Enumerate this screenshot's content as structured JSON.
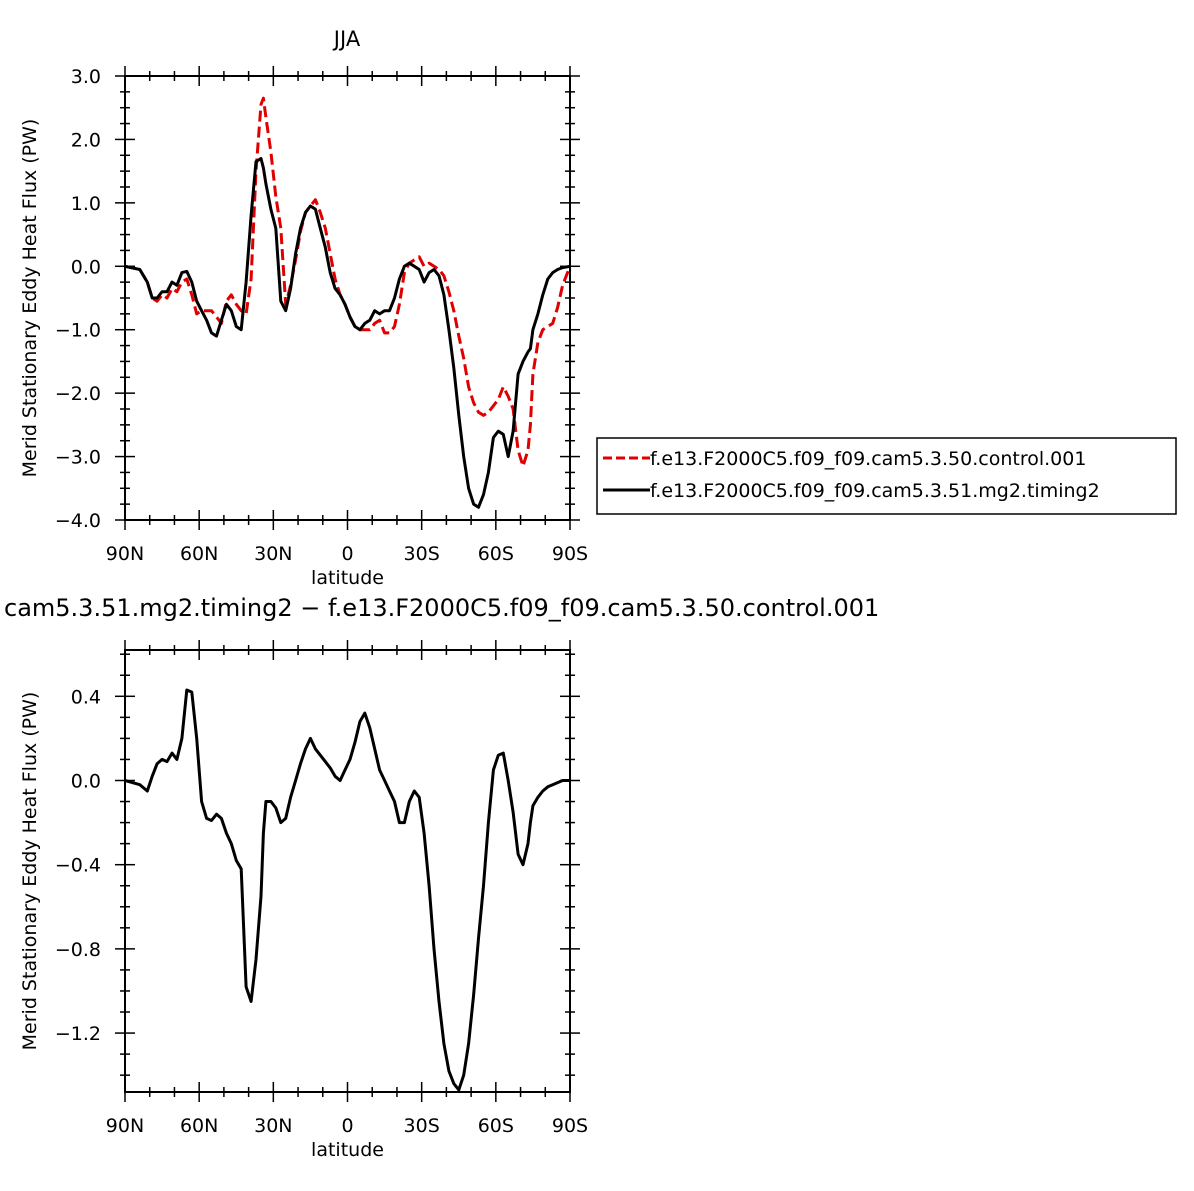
{
  "chart_data": [
    {
      "type": "line",
      "title": "JJA",
      "xlabel": "latitude",
      "ylabel": "Merid Stationary Eddy Heat Flux (PW)",
      "xlim": [
        90,
        -90
      ],
      "ylim": [
        -4.0,
        3.0
      ],
      "xticks": [
        {
          "v": 90,
          "label": "90N"
        },
        {
          "v": 60,
          "label": "60N"
        },
        {
          "v": 30,
          "label": "30N"
        },
        {
          "v": 0,
          "label": "0"
        },
        {
          "v": -30,
          "label": "30S"
        },
        {
          "v": -60,
          "label": "60S"
        },
        {
          "v": -90,
          "label": "90S"
        }
      ],
      "yticks": [
        {
          "v": 3.0,
          "label": "3.0"
        },
        {
          "v": 2.0,
          "label": "2.0"
        },
        {
          "v": 1.0,
          "label": "1.0"
        },
        {
          "v": 0.0,
          "label": "0.0"
        },
        {
          "v": -1.0,
          "label": "−1.0"
        },
        {
          "v": -2.0,
          "label": "−2.0"
        },
        {
          "v": -3.0,
          "label": "−3.0"
        },
        {
          "v": -4.0,
          "label": "−4.0"
        }
      ],
      "legend": "right",
      "series": [
        {
          "name": "f.e13.F2000C5.f09_f09.cam5.3.50.control.001",
          "color": "#e00000",
          "dash": "dashed",
          "x": [
            90,
            84,
            81,
            79,
            77,
            75,
            73,
            71,
            69,
            67,
            65,
            63,
            61,
            59,
            57,
            55,
            53,
            51,
            49,
            47,
            45,
            43,
            41,
            39,
            37,
            35,
            34,
            33,
            31,
            29,
            27,
            25,
            23,
            21,
            19,
            17,
            15,
            13,
            11,
            9,
            7,
            5,
            3,
            1,
            -1,
            -3,
            -5,
            -7,
            -9,
            -11,
            -13,
            -15,
            -17,
            -19,
            -21,
            -23,
            -25,
            -27,
            -29,
            -31,
            -33,
            -35,
            -37,
            -39,
            -41,
            -43,
            -45,
            -47,
            -49,
            -51,
            -53,
            -55,
            -57,
            -59,
            -61,
            -63,
            -65,
            -67,
            -69,
            -71,
            -73,
            -74,
            -75,
            -77,
            -79,
            -81,
            -83,
            -85,
            -87,
            -90
          ],
          "y": [
            0.0,
            -0.05,
            -0.25,
            -0.5,
            -0.55,
            -0.45,
            -0.5,
            -0.35,
            -0.4,
            -0.25,
            -0.2,
            -0.45,
            -0.75,
            -0.7,
            -0.7,
            -0.7,
            -0.8,
            -0.9,
            -0.55,
            -0.45,
            -0.6,
            -0.7,
            -0.75,
            -0.2,
            1.5,
            2.55,
            2.65,
            2.35,
            1.8,
            1.1,
            0.6,
            -0.6,
            -0.3,
            0.1,
            0.55,
            0.85,
            0.95,
            1.05,
            0.85,
            0.6,
            0.2,
            -0.2,
            -0.45,
            -0.6,
            -0.8,
            -0.95,
            -1.0,
            -1.0,
            -1.0,
            -0.9,
            -0.85,
            -1.05,
            -1.05,
            -0.95,
            -0.6,
            -0.1,
            0.05,
            0.1,
            0.15,
            0.0,
            0.05,
            0.0,
            -0.05,
            -0.15,
            -0.4,
            -0.7,
            -1.1,
            -1.45,
            -1.9,
            -2.15,
            -2.3,
            -2.35,
            -2.3,
            -2.2,
            -2.1,
            -1.9,
            -2.05,
            -2.25,
            -2.9,
            -3.15,
            -2.9,
            -2.5,
            -1.7,
            -1.2,
            -1.0,
            -0.95,
            -0.9,
            -0.65,
            -0.3,
            0.0
          ]
        },
        {
          "name": "f.e13.F2000C5.f09_f09.cam5.3.51.mg2.timing2",
          "color": "#000000",
          "dash": "solid",
          "x": [
            90,
            84,
            81,
            79,
            77,
            75,
            73,
            71,
            69,
            67,
            65,
            63,
            61,
            59,
            57,
            55,
            53,
            51,
            49,
            47,
            45,
            43,
            41,
            39,
            37,
            35,
            34,
            33,
            31,
            29,
            27,
            25,
            23,
            21,
            19,
            17,
            15,
            13,
            11,
            9,
            7,
            5,
            3,
            1,
            -1,
            -3,
            -5,
            -7,
            -9,
            -11,
            -13,
            -15,
            -17,
            -19,
            -21,
            -23,
            -25,
            -27,
            -29,
            -31,
            -33,
            -35,
            -37,
            -39,
            -41,
            -43,
            -45,
            -47,
            -49,
            -51,
            -53,
            -55,
            -57,
            -59,
            -61,
            -63,
            -65,
            -67,
            -69,
            -71,
            -73,
            -74,
            -75,
            -77,
            -79,
            -81,
            -83,
            -85,
            -87,
            -90
          ],
          "y": [
            0.0,
            -0.05,
            -0.25,
            -0.5,
            -0.5,
            -0.4,
            -0.4,
            -0.25,
            -0.3,
            -0.1,
            -0.08,
            -0.25,
            -0.55,
            -0.7,
            -0.85,
            -1.05,
            -1.1,
            -0.85,
            -0.6,
            -0.7,
            -0.95,
            -1.0,
            -0.25,
            0.8,
            1.65,
            1.7,
            1.55,
            1.3,
            0.9,
            0.6,
            -0.55,
            -0.7,
            -0.35,
            0.2,
            0.6,
            0.85,
            0.95,
            0.9,
            0.6,
            0.3,
            -0.1,
            -0.35,
            -0.45,
            -0.6,
            -0.8,
            -0.95,
            -1.0,
            -0.9,
            -0.85,
            -0.7,
            -0.75,
            -0.7,
            -0.7,
            -0.5,
            -0.2,
            0.0,
            0.05,
            0.0,
            -0.05,
            -0.25,
            -0.1,
            -0.05,
            -0.15,
            -0.45,
            -1.0,
            -1.6,
            -2.35,
            -3.0,
            -3.5,
            -3.75,
            -3.8,
            -3.6,
            -3.25,
            -2.7,
            -2.6,
            -2.65,
            -3.0,
            -2.6,
            -1.7,
            -1.5,
            -1.35,
            -1.3,
            -1.0,
            -0.75,
            -0.45,
            -0.2,
            -0.1,
            -0.05,
            -0.02,
            0.0
          ]
        }
      ]
    },
    {
      "type": "line",
      "title": "cam5.3.51.mg2.timing2 − f.e13.F2000C5.f09_f09.cam5.3.50.control.001",
      "xlabel": "latitude",
      "ylabel": "Merid Stationary Eddy Heat Flux (PW)",
      "xlim": [
        90,
        -90
      ],
      "ylim": [
        -1.48,
        0.62
      ],
      "xticks": [
        {
          "v": 90,
          "label": "90N"
        },
        {
          "v": 60,
          "label": "60N"
        },
        {
          "v": 30,
          "label": "30N"
        },
        {
          "v": 0,
          "label": "0"
        },
        {
          "v": -30,
          "label": "30S"
        },
        {
          "v": -60,
          "label": "60S"
        },
        {
          "v": -90,
          "label": "90S"
        }
      ],
      "yticks": [
        {
          "v": 0.4,
          "label": "0.4"
        },
        {
          "v": 0.0,
          "label": "0.0"
        },
        {
          "v": -0.4,
          "label": "−0.4"
        },
        {
          "v": -0.8,
          "label": "−0.8"
        },
        {
          "v": -1.2,
          "label": "−1.2"
        }
      ],
      "series": [
        {
          "color": "#000000",
          "dash": "solid",
          "x": [
            90,
            84,
            81,
            79,
            77,
            75,
            73,
            71,
            69,
            67,
            65,
            63,
            61,
            59,
            57,
            55,
            53,
            51,
            49,
            47,
            45,
            43,
            41,
            39,
            37,
            35,
            34,
            33,
            31,
            29,
            27,
            25,
            23,
            21,
            19,
            17,
            15,
            13,
            11,
            9,
            7,
            5,
            3,
            1,
            -1,
            -3,
            -5,
            -7,
            -9,
            -11,
            -13,
            -15,
            -17,
            -19,
            -21,
            -23,
            -25,
            -27,
            -29,
            -31,
            -33,
            -35,
            -37,
            -39,
            -41,
            -43,
            -45,
            -47,
            -49,
            -51,
            -53,
            -55,
            -57,
            -59,
            -61,
            -63,
            -65,
            -67,
            -69,
            -71,
            -73,
            -74,
            -75,
            -77,
            -79,
            -81,
            -83,
            -85,
            -87,
            -90
          ],
          "y": [
            0.0,
            -0.02,
            -0.05,
            0.02,
            0.08,
            0.1,
            0.09,
            0.13,
            0.1,
            0.2,
            0.43,
            0.42,
            0.2,
            -0.1,
            -0.18,
            -0.19,
            -0.16,
            -0.18,
            -0.25,
            -0.3,
            -0.38,
            -0.42,
            -0.98,
            -1.05,
            -0.85,
            -0.55,
            -0.25,
            -0.1,
            -0.1,
            -0.13,
            -0.2,
            -0.18,
            -0.08,
            0.0,
            0.08,
            0.15,
            0.2,
            0.15,
            0.12,
            0.09,
            0.06,
            0.02,
            0.0,
            0.05,
            0.1,
            0.18,
            0.28,
            0.32,
            0.25,
            0.15,
            0.05,
            0.0,
            -0.05,
            -0.1,
            -0.2,
            -0.2,
            -0.1,
            -0.05,
            -0.08,
            -0.25,
            -0.5,
            -0.8,
            -1.05,
            -1.25,
            -1.38,
            -1.44,
            -1.47,
            -1.4,
            -1.25,
            -1.02,
            -0.75,
            -0.5,
            -0.2,
            0.05,
            0.12,
            0.13,
            0.0,
            -0.15,
            -0.35,
            -0.4,
            -0.3,
            -0.2,
            -0.12,
            -0.08,
            -0.05,
            -0.03,
            -0.02,
            -0.01,
            0.0,
            0.0
          ]
        }
      ]
    }
  ]
}
